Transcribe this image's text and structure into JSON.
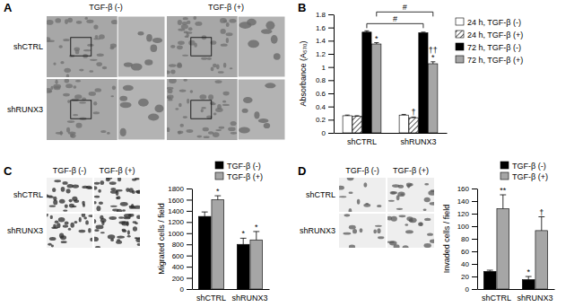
{
  "images": [
    {
      "panel_label": "A",
      "columns": [
        "TGF-β (-)",
        "TGF-β (+)"
      ],
      "rows": [
        "shCTRL",
        "shRUNX3"
      ]
    },
    {
      "panel_label": "C",
      "columns": [
        "TGF-β (-)",
        "TGF-β (+)"
      ],
      "rows": [
        "shCTRL",
        "shRUNX3"
      ]
    },
    {
      "panel_label": "D",
      "columns": [
        "TGF-β (-)",
        "TGF-β (+)"
      ],
      "rows": [
        "shCTRL",
        "shRUNX3"
      ]
    }
  ],
  "chart_data": [
    {
      "type": "bar",
      "panel_label": "B",
      "y_label": "Absorbance (A₅₇₀)",
      "categories": [
        "shCTRL",
        "shRUNX3"
      ],
      "ylim": [
        0,
        1.8
      ],
      "yticks": [
        0,
        0.2,
        0.4,
        0.6,
        0.8,
        1,
        1.2,
        1.4,
        1.6,
        1.8
      ],
      "legend": "right",
      "series": [
        {
          "name": "24 h, TGF-β (-)",
          "color": "#ffffff",
          "values": [
            0.26,
            0.27
          ],
          "errors": [
            0.01,
            0.01
          ],
          "annotations": [
            [],
            []
          ]
        },
        {
          "name": "24 h, TGF-β (+)",
          "color": "#ffffff",
          "marker": "hatch",
          "values": [
            0.25,
            0.23
          ],
          "errors": [
            0.01,
            0.01
          ],
          "annotations": [
            [],
            [
              "†"
            ]
          ]
        },
        {
          "name": "72 h, TGF-β (-)",
          "color": "#000000",
          "values": [
            1.53,
            1.52
          ],
          "errors": [
            0.02,
            0.01
          ],
          "annotations": [
            [],
            []
          ]
        },
        {
          "name": "72 h, TGF-β (+)",
          "color": "#a6a6a6",
          "values": [
            1.35,
            1.05
          ],
          "errors": [
            0.02,
            0.03
          ],
          "annotations": [
            [
              "*"
            ],
            [
              "*",
              "††"
            ]
          ]
        }
      ],
      "brackets": [
        {
          "text": "#",
          "series": "72 h, TGF-β (-)"
        },
        {
          "text": "#",
          "series": "72 h, TGF-β (+)"
        }
      ]
    },
    {
      "type": "bar",
      "y_label": "Migrated cells / field",
      "categories": [
        "shCTRL",
        "shRUNX3"
      ],
      "ylim": [
        0,
        1800
      ],
      "yticks": [
        0,
        200,
        400,
        600,
        800,
        1000,
        1200,
        1400,
        1600,
        1800
      ],
      "legend": "top",
      "series": [
        {
          "name": "TGF-β (-)",
          "color": "#000000",
          "values": [
            1300,
            800
          ],
          "errors": [
            80,
            110
          ],
          "annotations": [
            [],
            [
              "*"
            ]
          ]
        },
        {
          "name": "TGF-β (+)",
          "color": "#a6a6a6",
          "values": [
            1600,
            880
          ],
          "errors": [
            70,
            150
          ],
          "annotations": [
            [
              "*"
            ],
            [
              "*"
            ]
          ]
        }
      ]
    },
    {
      "type": "bar",
      "y_label": "Invaded cells / field",
      "categories": [
        "shCTRL",
        "shRUNX3"
      ],
      "ylim": [
        0,
        160
      ],
      "yticks": [
        0,
        20,
        40,
        60,
        80,
        100,
        120,
        140,
        160
      ],
      "legend": "top",
      "series": [
        {
          "name": "TGF-β (-)",
          "color": "#000000",
          "values": [
            28,
            15
          ],
          "errors": [
            2,
            5
          ],
          "annotations": [
            [],
            [
              "*"
            ]
          ]
        },
        {
          "name": "TGF-β (+)",
          "color": "#a6a6a6",
          "values": [
            128,
            93
          ],
          "errors": [
            22,
            22
          ],
          "annotations": [
            [
              "**"
            ],
            [
              "†"
            ]
          ]
        }
      ]
    }
  ]
}
